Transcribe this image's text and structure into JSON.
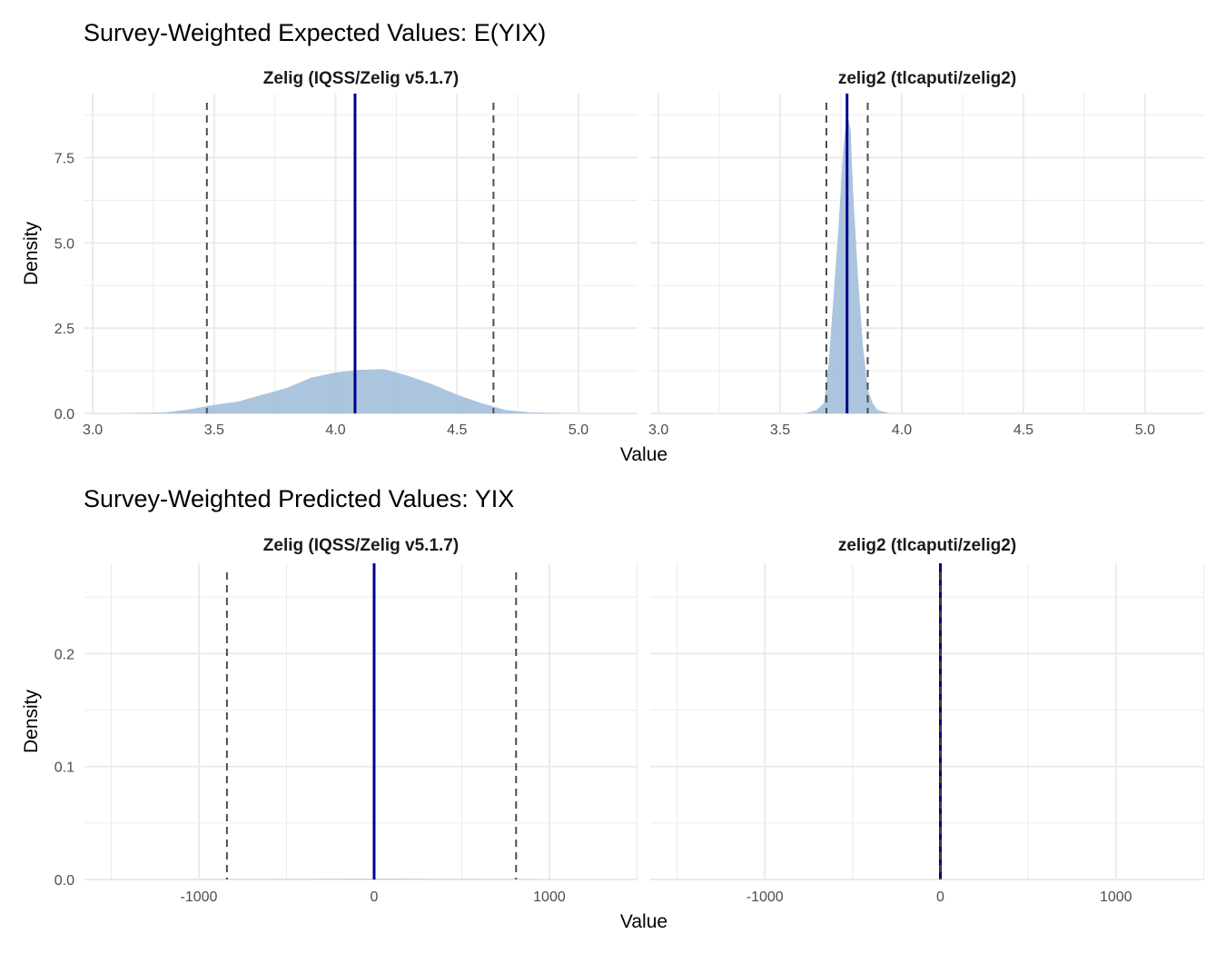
{
  "chart_data": [
    {
      "type": "area",
      "title": "Survey-Weighted Expected Values: E(YIX)",
      "xlabel": "Value",
      "ylabel": "Density",
      "panels": [
        {
          "name": "Zelig (IQSS/Zelig v5.1.7)",
          "xlim": [
            2.966,
            5.243
          ],
          "ylim": [
            0,
            9.38
          ],
          "x": [
            3.1,
            3.3,
            3.4,
            3.5,
            3.6,
            3.7,
            3.8,
            3.9,
            4.0,
            4.1,
            4.2,
            4.3,
            4.4,
            4.5,
            4.6,
            4.7,
            4.8,
            5.0,
            5.1
          ],
          "density": [
            0,
            0.03,
            0.12,
            0.25,
            0.35,
            0.55,
            0.75,
            1.05,
            1.2,
            1.28,
            1.3,
            1.1,
            0.85,
            0.55,
            0.3,
            0.1,
            0.03,
            0,
            0
          ],
          "mean": 4.08,
          "ci": [
            3.47,
            4.65
          ]
        },
        {
          "name": "zelig2 (tlcaputi/zelig2)",
          "xlim": [
            2.966,
            5.243
          ],
          "ylim": [
            0,
            9.38
          ],
          "x": [
            3.6,
            3.65,
            3.68,
            3.7,
            3.72,
            3.74,
            3.76,
            3.775,
            3.79,
            3.8,
            3.82,
            3.84,
            3.86,
            3.88,
            3.9,
            3.95
          ],
          "density": [
            0,
            0.1,
            0.3,
            1.5,
            3.5,
            5.5,
            7.8,
            8.8,
            8.3,
            6.5,
            4,
            2,
            0.7,
            0.3,
            0.1,
            0
          ],
          "mean": 3.775,
          "ci": [
            3.69,
            3.86
          ]
        }
      ],
      "xticks": [
        "3.0",
        "3.5",
        "4.0",
        "4.5",
        "5.0"
      ],
      "xtick_values": [
        3,
        3.5,
        4,
        4.5,
        5
      ],
      "yticks": [
        "0.0",
        "2.5",
        "5.0",
        "7.5"
      ],
      "ytick_values": [
        0,
        2.5,
        5,
        7.5
      ]
    },
    {
      "type": "area",
      "title": "Survey-Weighted Predicted Values: YIX",
      "xlabel": "Value",
      "ylabel": "Density",
      "panels": [
        {
          "name": "Zelig (IQSS/Zelig v5.1.7)",
          "xlim": [
            -1653,
            1503
          ],
          "ylim": [
            0,
            0.28
          ],
          "x": [
            -1200,
            -600,
            0,
            600,
            1200
          ],
          "density": [
            0,
            0.0003,
            0.0006,
            0.0003,
            0
          ],
          "mean": 0,
          "ci": [
            -840,
            810
          ]
        },
        {
          "name": "zelig2 (tlcaputi/zelig2)",
          "xlim": [
            -1653,
            1503
          ],
          "ylim": [
            0,
            0.28
          ],
          "x": [
            -5,
            0,
            5
          ],
          "density": [
            0,
            0,
            0
          ],
          "mean": 0,
          "ci": [
            0,
            0
          ]
        }
      ],
      "xticks": [
        "-1000",
        "0",
        "1000"
      ],
      "xtick_values": [
        -1000,
        0,
        1000
      ],
      "yticks": [
        "0.0",
        "0.1",
        "0.2"
      ],
      "ytick_values": [
        0,
        0.1,
        0.2
      ]
    }
  ],
  "colors": {
    "fill": "#a6c2dc",
    "mean": "#00008b",
    "ci": "#4d4d4d",
    "grid": "#ebebeb"
  }
}
